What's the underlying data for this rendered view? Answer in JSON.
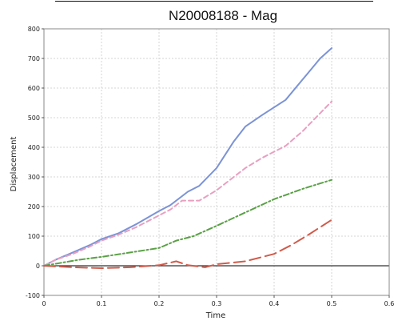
{
  "chart_data": {
    "type": "line",
    "title": "N20008188 - Mag",
    "xlabel": "Time",
    "ylabel": "Displacement",
    "xlim": [
      0,
      0.6
    ],
    "ylim": [
      -100,
      800
    ],
    "x_ticks": [
      0,
      0.1,
      0.2,
      0.3,
      0.4,
      0.5,
      0.6
    ],
    "x_tick_labels": [
      "0",
      "0.1",
      "0.2",
      "0.3",
      "0.4",
      "0.5",
      "0.6"
    ],
    "y_ticks": [
      -100,
      0,
      100,
      200,
      300,
      400,
      500,
      600,
      700,
      800
    ],
    "y_tick_labels": [
      "-100",
      "0",
      "100",
      "200",
      "300",
      "400",
      "500",
      "600",
      "700",
      "800"
    ],
    "grid": true,
    "zero_line": true,
    "series": [
      {
        "color": "#7b93d6",
        "style": "solid",
        "x": [
          0,
          0.02,
          0.05,
          0.08,
          0.1,
          0.13,
          0.16,
          0.2,
          0.22,
          0.25,
          0.27,
          0.3,
          0.33,
          0.35,
          0.38,
          0.42,
          0.45,
          0.48,
          0.5
        ],
        "y": [
          0,
          20,
          45,
          70,
          90,
          110,
          140,
          185,
          205,
          250,
          270,
          330,
          420,
          470,
          510,
          560,
          630,
          700,
          735
        ]
      },
      {
        "color": "#e8a0c0",
        "style": "dashed",
        "x": [
          0,
          0.02,
          0.05,
          0.08,
          0.1,
          0.13,
          0.16,
          0.2,
          0.22,
          0.24,
          0.27,
          0.3,
          0.33,
          0.35,
          0.38,
          0.42,
          0.45,
          0.48,
          0.5
        ],
        "y": [
          0,
          20,
          40,
          65,
          85,
          105,
          130,
          170,
          190,
          220,
          220,
          255,
          300,
          330,
          365,
          405,
          455,
          515,
          555
        ]
      },
      {
        "color": "#5aa046",
        "style": "dash-dot",
        "x": [
          0,
          0.03,
          0.06,
          0.1,
          0.15,
          0.2,
          0.23,
          0.26,
          0.3,
          0.35,
          0.4,
          0.45,
          0.5
        ],
        "y": [
          0,
          10,
          20,
          30,
          45,
          60,
          85,
          100,
          135,
          180,
          225,
          260,
          290
        ]
      },
      {
        "color": "#d05a4a",
        "style": "long-dash",
        "x": [
          0,
          0.05,
          0.1,
          0.15,
          0.2,
          0.23,
          0.25,
          0.28,
          0.3,
          0.35,
          0.4,
          0.43,
          0.46,
          0.5
        ],
        "y": [
          0,
          -5,
          -8,
          -5,
          2,
          15,
          2,
          -5,
          5,
          15,
          40,
          70,
          105,
          155
        ]
      }
    ]
  }
}
